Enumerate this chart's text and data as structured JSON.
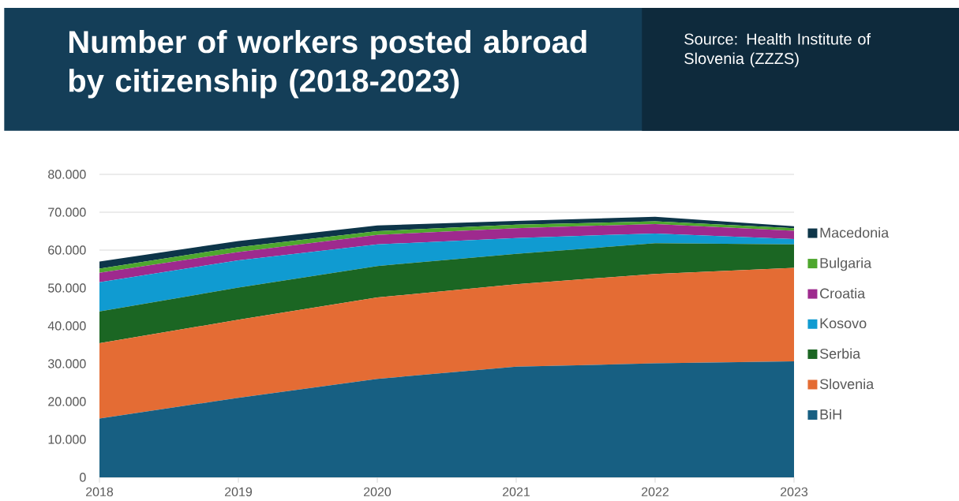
{
  "chart_data": {
    "type": "area",
    "stacked": true,
    "title": "Number of workers posted abroad by citizenship (2018-2023)",
    "annotations": [
      "Source: Health Institute of Slovenia (ZZZS)"
    ],
    "x": [
      2018,
      2019,
      2020,
      2021,
      2022,
      2023
    ],
    "series": [
      {
        "name": "BiH",
        "color": "#175f82",
        "values": [
          15500,
          21000,
          26000,
          29200,
          30100,
          30600
        ]
      },
      {
        "name": "Slovenia",
        "color": "#e46c34",
        "values": [
          19900,
          20600,
          21500,
          21800,
          23600,
          24700
        ]
      },
      {
        "name": "Serbia",
        "color": "#1b6623",
        "values": [
          8400,
          8500,
          8300,
          8000,
          8100,
          6200
        ]
      },
      {
        "name": "Kosovo",
        "color": "#109bd1",
        "values": [
          7700,
          7200,
          5700,
          4200,
          2600,
          1400
        ]
      },
      {
        "name": "Croatia",
        "color": "#9e2a8e",
        "values": [
          2500,
          2200,
          2500,
          2600,
          2500,
          2200
        ]
      },
      {
        "name": "Bulgaria",
        "color": "#4ea72e",
        "values": [
          1100,
          1300,
          1000,
          900,
          700,
          700
        ]
      },
      {
        "name": "Macedonia",
        "color": "#0d3549",
        "values": [
          1900,
          1600,
          1500,
          1000,
          1200,
          500
        ]
      }
    ],
    "xlim": [
      2018,
      2023
    ],
    "xticks": [
      2018,
      2019,
      2020,
      2021,
      2022,
      2023
    ],
    "ylim": [
      0,
      80000
    ],
    "yticks": [
      0,
      {
        "value": 10000,
        "label": "10.000"
      },
      {
        "value": 20000,
        "label": "20.000"
      },
      {
        "value": 30000,
        "label": "30.000"
      },
      {
        "value": 40000,
        "label": "40.000"
      },
      {
        "value": 50000,
        "label": "50.000"
      },
      {
        "value": 60000,
        "label": "60.000"
      },
      {
        "value": 70000,
        "label": "70.000"
      },
      {
        "value": 80000,
        "label": "80.000"
      }
    ],
    "grid": "y",
    "legend": "right"
  }
}
